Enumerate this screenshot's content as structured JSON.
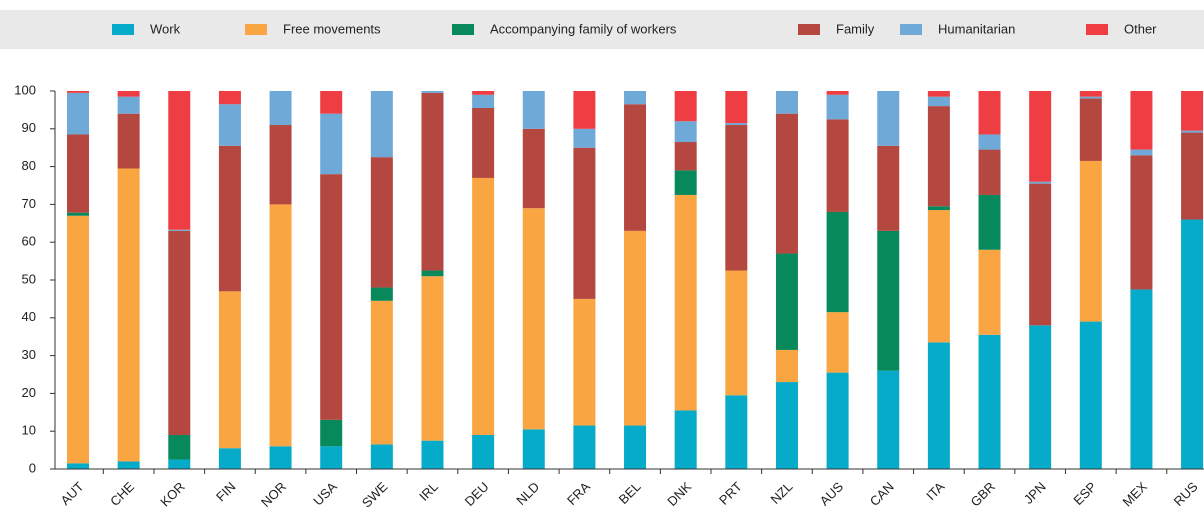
{
  "chart_data": {
    "type": "stacked_bar",
    "categories": [
      "AUT",
      "CHE",
      "KOR",
      "FIN",
      "NOR",
      "USA",
      "SWE",
      "IRL",
      "DEU",
      "NLD",
      "FRA",
      "BEL",
      "DNK",
      "PRT",
      "NZL",
      "AUS",
      "CAN",
      "ITA",
      "GBR",
      "JPN",
      "ESP",
      "MEX",
      "RUS"
    ],
    "series": [
      {
        "name": "Work",
        "color": "#05abc9",
        "values": [
          1.5,
          2,
          2.5,
          5.5,
          6,
          6,
          6.5,
          7.5,
          9,
          10.5,
          11.5,
          11.5,
          15.5,
          19.5,
          23,
          25.5,
          26,
          33.5,
          35.5,
          38,
          39,
          47.5,
          66
        ]
      },
      {
        "name": "Free movements",
        "color": "#f9a541",
        "values": [
          65.5,
          77.5,
          0,
          41.5,
          64,
          0,
          38,
          43.5,
          68,
          58.5,
          33.5,
          51.5,
          57,
          33,
          8.5,
          16,
          0,
          35,
          22.5,
          0,
          42.5,
          0,
          0
        ]
      },
      {
        "name": "Accompanying family of workers",
        "color": "#07895b",
        "values": [
          0.8,
          0,
          6.5,
          0,
          0,
          7,
          3.5,
          1.5,
          0,
          0,
          0,
          0,
          6.5,
          0,
          25.5,
          26.5,
          37,
          1,
          14.5,
          0,
          0,
          0,
          0
        ]
      },
      {
        "name": "Family",
        "color": "#b4473f",
        "values": [
          20.7,
          14.5,
          54,
          38.5,
          21,
          65,
          34.5,
          47,
          18.5,
          21,
          40,
          33.5,
          7.5,
          38.5,
          37,
          24.5,
          22.5,
          26.5,
          12,
          37.5,
          16.5,
          35.5,
          23
        ]
      },
      {
        "name": "Humanitarian",
        "color": "#6ea9d7",
        "values": [
          11,
          4.5,
          0.3,
          11,
          9,
          16,
          17.5,
          0.5,
          3.5,
          10,
          5,
          3.5,
          5.5,
          0.5,
          6,
          6.5,
          14.5,
          2.5,
          4,
          0.5,
          0.5,
          1.5,
          0.5
        ]
      },
      {
        "name": "Other",
        "color": "#ee3e43",
        "values": [
          0.5,
          1.5,
          36.7,
          3.5,
          0,
          6,
          0,
          0,
          1,
          0,
          10,
          0,
          8,
          8.5,
          0,
          1,
          0,
          1.5,
          11.5,
          24,
          1.5,
          15.5,
          10.5
        ]
      }
    ],
    "ylim": [
      0,
      100
    ],
    "yticks": [
      0,
      10,
      20,
      30,
      40,
      50,
      60,
      70,
      80,
      90,
      100
    ],
    "grid": false,
    "legend": "top"
  }
}
